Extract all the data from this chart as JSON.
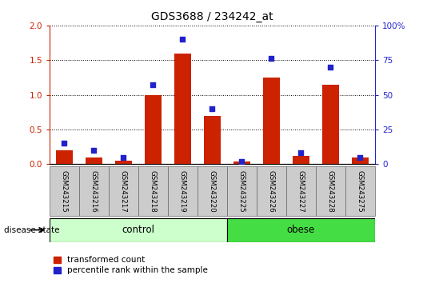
{
  "title": "GDS3688 / 234242_at",
  "samples": [
    "GSM243215",
    "GSM243216",
    "GSM243217",
    "GSM243218",
    "GSM243219",
    "GSM243220",
    "GSM243225",
    "GSM243226",
    "GSM243227",
    "GSM243228",
    "GSM243275"
  ],
  "transformed_count": [
    0.2,
    0.1,
    0.05,
    1.0,
    1.6,
    0.7,
    0.04,
    1.25,
    0.12,
    1.15,
    0.1
  ],
  "percentile_rank": [
    15,
    10,
    5,
    57,
    90,
    40,
    2,
    76,
    8,
    70,
    5
  ],
  "n_control": 6,
  "n_obese": 5,
  "left_ylim": [
    0,
    2
  ],
  "right_ylim": [
    0,
    100
  ],
  "left_yticks": [
    0,
    0.5,
    1.0,
    1.5,
    2.0
  ],
  "right_yticks": [
    0,
    25,
    50,
    75,
    100
  ],
  "bar_color": "#cc2200",
  "dot_color": "#2222cc",
  "control_color": "#ccffcc",
  "obese_color": "#44dd44",
  "tick_label_bg": "#cccccc",
  "left_tick_color": "#cc2200",
  "right_tick_color": "#2222cc",
  "disease_state_label": "disease state",
  "control_label": "control",
  "obese_label": "obese",
  "legend_red": "transformed count",
  "legend_blue": "percentile rank within the sample"
}
